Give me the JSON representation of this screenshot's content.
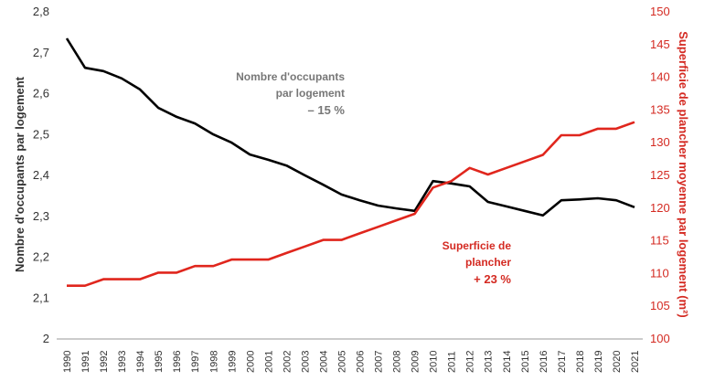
{
  "chart_data": {
    "type": "line",
    "x": [
      1990,
      1991,
      1992,
      1993,
      1994,
      1995,
      1996,
      1997,
      1998,
      1999,
      2000,
      2001,
      2002,
      2003,
      2004,
      2005,
      2006,
      2007,
      2008,
      2009,
      2010,
      2011,
      2012,
      2013,
      2014,
      2015,
      2016,
      2017,
      2018,
      2019,
      2020,
      2021
    ],
    "x_tick_labels": [
      "1990",
      "1991",
      "1992",
      "1993",
      "1994",
      "1995",
      "1996",
      "1997",
      "1998",
      "1999",
      "2000",
      "2001",
      "2002",
      "2003",
      "2004",
      "2005",
      "2006",
      "2007",
      "2008",
      "2009",
      "2010",
      "2011",
      "2012",
      "2013",
      "2014",
      "2015",
      "2016",
      "2017",
      "2018",
      "2019",
      "2020",
      "2021"
    ],
    "series": [
      {
        "name": "Nombre d'occupants par logement",
        "axis": "left",
        "color": "#000000",
        "values": [
          2.733,
          2.661,
          2.653,
          2.635,
          2.608,
          2.563,
          2.541,
          2.525,
          2.498,
          2.478,
          2.449,
          2.436,
          2.422,
          2.398,
          2.375,
          2.351,
          2.337,
          2.324,
          2.317,
          2.311,
          2.384,
          2.378,
          2.371,
          2.333,
          2.322,
          2.311,
          2.3,
          2.337,
          2.339,
          2.342,
          2.337,
          2.32
        ]
      },
      {
        "name": "Superficie de plancher",
        "axis": "right",
        "color": "#e0261d",
        "values": [
          108,
          108,
          109,
          109,
          109,
          110,
          110,
          111,
          111,
          112,
          112,
          112,
          113,
          114,
          115,
          115,
          116,
          117,
          118,
          119,
          123,
          124,
          126,
          125,
          126,
          127,
          128,
          131,
          131,
          132,
          132,
          133
        ]
      }
    ],
    "ylabel": "Nombre d'occupants par logement",
    "ylabel_right": "Superficie de plancher moyenne par logement (m²)",
    "ylim": [
      2,
      2.8
    ],
    "ylim_right": [
      100,
      150
    ],
    "y_ticks": [
      "2",
      "2,1",
      "2,2",
      "2,3",
      "2,4",
      "2,5",
      "2,6",
      "2,7",
      "2,8"
    ],
    "y_ticks_right": [
      "100",
      "105",
      "110",
      "115",
      "120",
      "125",
      "130",
      "135",
      "140",
      "145",
      "150"
    ],
    "grid": false,
    "annotations": {
      "occupants": [
        "Nombre d'occupants",
        "par logement",
        "– 15 %"
      ],
      "superficie": [
        "Superficie de",
        "plancher",
        "+ 23 %"
      ]
    }
  }
}
